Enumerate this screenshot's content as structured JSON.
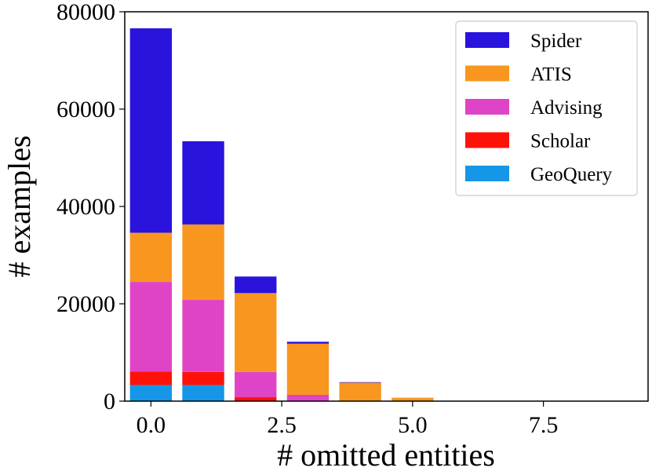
{
  "chart_data": {
    "type": "bar",
    "stacked": true,
    "title": "",
    "xlabel": "# omitted entities",
    "ylabel": "# examples",
    "xlim": [
      -0.5,
      9.5
    ],
    "ylim": [
      0,
      80000
    ],
    "xticks": [
      0.0,
      2.5,
      5.0,
      7.5
    ],
    "xtick_labels": [
      "0.0",
      "2.5",
      "5.0",
      "7.5"
    ],
    "yticks": [
      0,
      20000,
      40000,
      60000,
      80000
    ],
    "ytick_labels": [
      "0",
      "20000",
      "40000",
      "60000",
      "80000"
    ],
    "x": [
      0,
      1,
      2,
      3,
      4,
      5,
      6,
      7,
      8,
      9
    ],
    "legend_position": "top-right",
    "series": [
      {
        "name": "GeoQuery",
        "color": "#1596e6",
        "values": [
          3300,
          3300,
          0,
          0,
          0,
          0,
          0,
          0,
          0,
          0
        ]
      },
      {
        "name": "Scholar",
        "color": "#fe1109",
        "values": [
          2800,
          2700,
          800,
          0,
          0,
          0,
          0,
          0,
          0,
          0
        ]
      },
      {
        "name": "Advising",
        "color": "#e044c6",
        "values": [
          18400,
          14800,
          5200,
          1300,
          0,
          0,
          0,
          0,
          0,
          0
        ]
      },
      {
        "name": "ATIS",
        "color": "#f8961f",
        "values": [
          10100,
          15500,
          16200,
          10500,
          3800,
          700,
          0,
          0,
          0,
          0
        ]
      },
      {
        "name": "Spider",
        "color": "#2a13dc",
        "values": [
          42000,
          17100,
          3400,
          400,
          100,
          0,
          0,
          0,
          0,
          0
        ]
      }
    ]
  }
}
